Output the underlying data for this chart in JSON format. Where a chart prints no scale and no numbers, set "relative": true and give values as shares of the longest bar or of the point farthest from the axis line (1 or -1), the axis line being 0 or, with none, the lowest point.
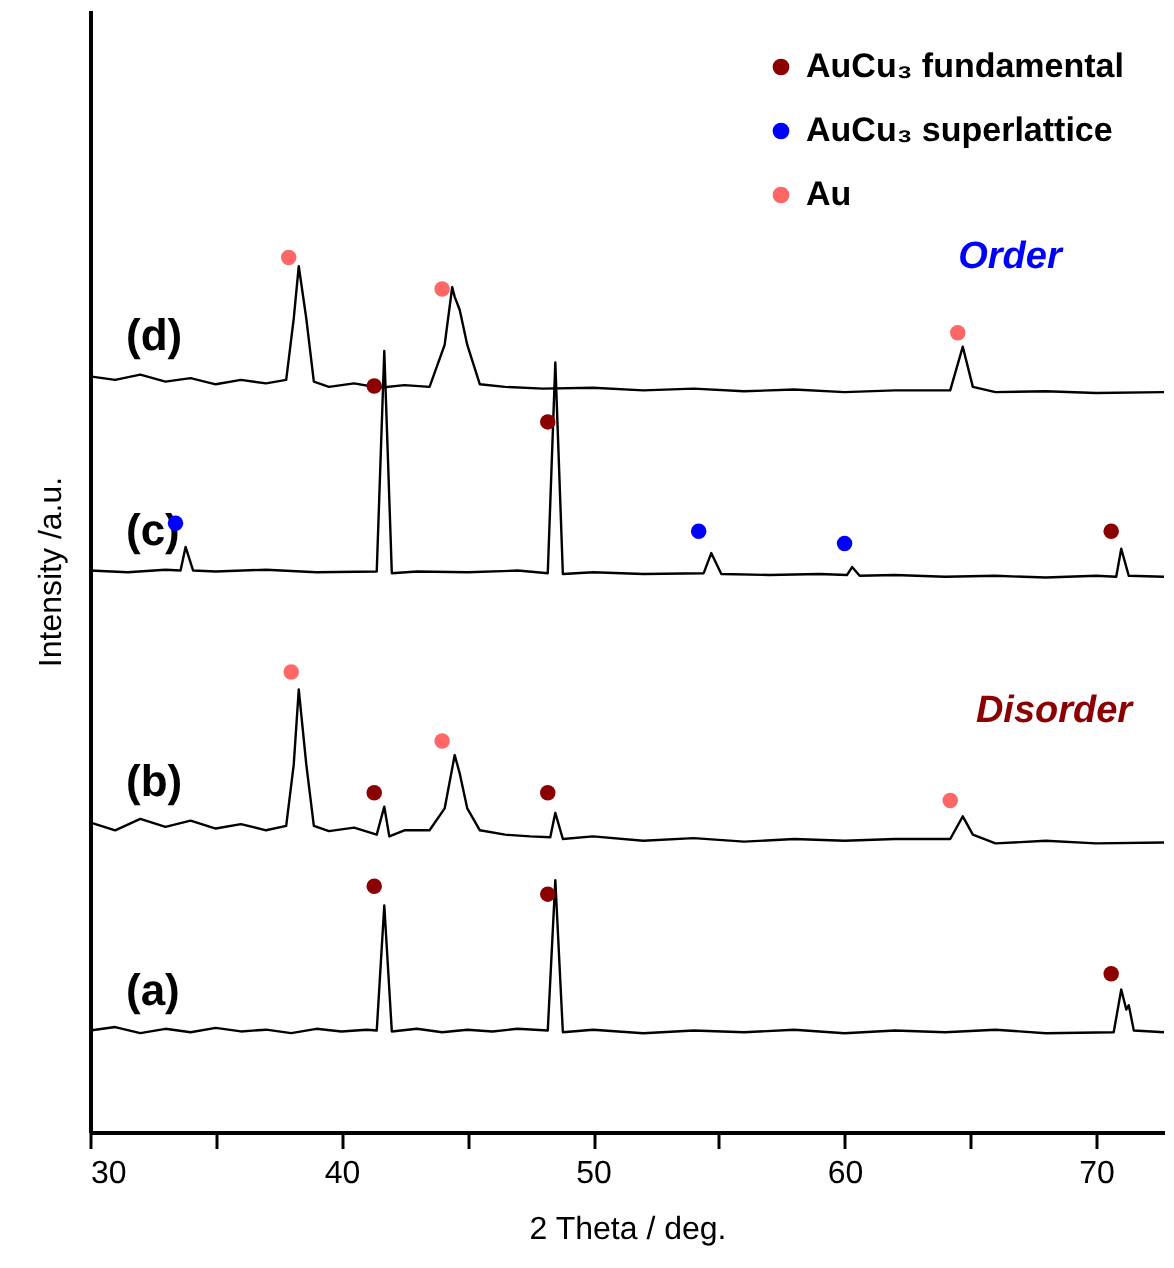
{
  "chart_data": {
    "type": "line",
    "relative": true,
    "xlabel": "2 Theta  / deg.",
    "ylabel": "Intensity /a.u.",
    "xlim": [
      30,
      72.7
    ],
    "xticks": [
      30,
      {
        "value": 35,
        "label": null
      },
      40,
      {
        "value": 45,
        "label": null
      },
      50,
      {
        "value": 55,
        "label": null
      },
      60,
      {
        "value": 65,
        "label": null
      },
      70
    ],
    "grid": false,
    "legend": "top right",
    "line_style": "solid",
    "series": [
      {
        "name": "(a)",
        "color": "#000000",
        "x": [
          30,
          31,
          32,
          33,
          34,
          35,
          36,
          37,
          38,
          39,
          40,
          41,
          41.4,
          41.7,
          42.0,
          43,
          44,
          45,
          46,
          47,
          48.2,
          48.5,
          48.8,
          50,
          52,
          54,
          56,
          58,
          60,
          62,
          64,
          66,
          68,
          70.7,
          71.0,
          71.2,
          71.3,
          71.5,
          72.7
        ],
        "values": [
          0.116,
          0.12,
          0.113,
          0.118,
          0.114,
          0.119,
          0.115,
          0.117,
          0.113,
          0.118,
          0.115,
          0.117,
          0.116,
          0.259,
          0.115,
          0.118,
          0.114,
          0.117,
          0.115,
          0.118,
          0.116,
          0.288,
          0.114,
          0.117,
          0.113,
          0.116,
          0.114,
          0.117,
          0.113,
          0.116,
          0.114,
          0.117,
          0.113,
          0.114,
          0.163,
          0.14,
          0.145,
          0.116,
          0.114
        ]
      },
      {
        "name": "(b)",
        "color": "#000000",
        "x": [
          30,
          31,
          32,
          33,
          34,
          35,
          36,
          37,
          37.8,
          38.1,
          38.3,
          38.6,
          38.9,
          39.5,
          40.5,
          41.4,
          41.7,
          41.9,
          42.5,
          43.5,
          44.1,
          44.5,
          44.7,
          45.0,
          45.5,
          46.5,
          47.5,
          48.3,
          48.5,
          48.8,
          50,
          52,
          54,
          56,
          58,
          60,
          62,
          64.2,
          64.7,
          65.1,
          66,
          68,
          70,
          72.7
        ],
        "values": [
          0.354,
          0.345,
          0.358,
          0.349,
          0.356,
          0.347,
          0.352,
          0.345,
          0.35,
          0.42,
          0.506,
          0.42,
          0.35,
          0.344,
          0.348,
          0.34,
          0.372,
          0.338,
          0.345,
          0.345,
          0.37,
          0.431,
          0.41,
          0.37,
          0.345,
          0.34,
          0.338,
          0.337,
          0.365,
          0.335,
          0.338,
          0.333,
          0.336,
          0.332,
          0.335,
          0.333,
          0.335,
          0.335,
          0.361,
          0.34,
          0.33,
          0.333,
          0.33,
          0.331
        ]
      },
      {
        "name": "(c)",
        "color": "#000000",
        "x": [
          30,
          31.5,
          33,
          33.6,
          33.8,
          34.1,
          35,
          37,
          39,
          41.4,
          41.7,
          42.0,
          43,
          45,
          47,
          48.2,
          48.5,
          48.8,
          50,
          52,
          54.4,
          54.7,
          55.1,
          57,
          59,
          60.1,
          60.3,
          60.6,
          62,
          64,
          66,
          68,
          70,
          70.8,
          71.0,
          71.3,
          72.7
        ],
        "values": [
          0.642,
          0.64,
          0.643,
          0.642,
          0.669,
          0.642,
          0.641,
          0.643,
          0.64,
          0.641,
          0.893,
          0.639,
          0.641,
          0.64,
          0.642,
          0.639,
          0.88,
          0.638,
          0.64,
          0.638,
          0.639,
          0.662,
          0.638,
          0.637,
          0.638,
          0.637,
          0.646,
          0.636,
          0.637,
          0.635,
          0.636,
          0.634,
          0.636,
          0.635,
          0.667,
          0.636,
          0.635
        ]
      },
      {
        "name": "(d)",
        "color": "#000000",
        "x": [
          30,
          31,
          32,
          33,
          34,
          35,
          36,
          37,
          37.8,
          38.1,
          38.3,
          38.6,
          38.9,
          39.5,
          40.5,
          41.5,
          42.5,
          43.5,
          44.1,
          44.4,
          44.5,
          44.7,
          45.0,
          45.5,
          46.5,
          48,
          50,
          52,
          54,
          56,
          58,
          60,
          62,
          64.2,
          64.7,
          65.1,
          66,
          68,
          70,
          72.7
        ],
        "values": [
          0.864,
          0.86,
          0.866,
          0.858,
          0.862,
          0.855,
          0.86,
          0.856,
          0.86,
          0.93,
          0.99,
          0.93,
          0.858,
          0.852,
          0.856,
          0.851,
          0.854,
          0.852,
          0.9,
          0.966,
          0.955,
          0.94,
          0.9,
          0.855,
          0.852,
          0.85,
          0.851,
          0.848,
          0.85,
          0.847,
          0.849,
          0.846,
          0.848,
          0.848,
          0.898,
          0.852,
          0.846,
          0.847,
          0.845,
          0.846
        ]
      },
      {
        "type": "scatter",
        "name": "AuCu₃ fundamental",
        "color": "#8b0000",
        "marker": "circle",
        "x": [
          41.3,
          48.2,
          70.6,
          41.3,
          48.2,
          41.3,
          48.2,
          70.6
        ],
        "values": [
          0.853,
          0.812,
          0.687,
          0.388,
          0.388,
          0.281,
          0.272,
          0.181
        ]
      },
      {
        "type": "scatter",
        "name": "AuCu₃ superlattice",
        "color": "#0000ff",
        "marker": "circle",
        "x": [
          33.4,
          54.2,
          60.0
        ],
        "values": [
          0.696,
          0.687,
          0.673
        ]
      },
      {
        "type": "scatter",
        "name": "Au",
        "color": "#ff6666",
        "marker": "circle",
        "x": [
          37.9,
          44.0,
          64.5,
          38.0,
          44.0,
          64.2
        ],
        "values": [
          1.0,
          0.964,
          0.914,
          0.526,
          0.447,
          0.379
        ]
      }
    ],
    "annotations": [
      "Order",
      "Disorder"
    ]
  }
}
